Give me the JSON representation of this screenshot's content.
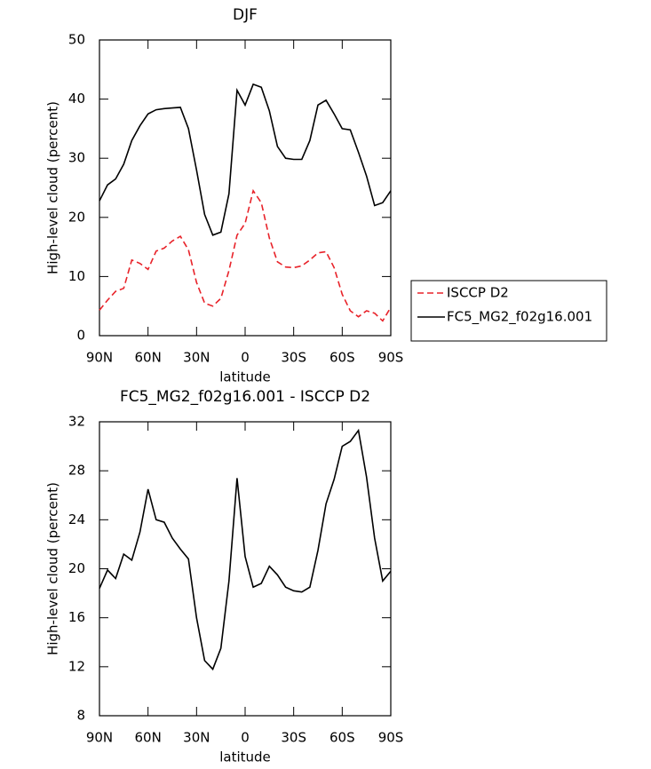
{
  "chart_data": [
    {
      "type": "line",
      "title": "DJF",
      "xlabel": "latitude",
      "ylabel": "High-level cloud (percent)",
      "x": [
        90,
        85,
        80,
        75,
        70,
        65,
        60,
        55,
        50,
        45,
        40,
        35,
        30,
        25,
        20,
        15,
        10,
        5,
        0,
        -5,
        -10,
        -15,
        -20,
        -25,
        -30,
        -35,
        -40,
        -45,
        -50,
        -55,
        -60,
        -65,
        -70,
        -75,
        -80,
        -85,
        -90
      ],
      "xlim": [
        90,
        -90
      ],
      "xticks": [
        {
          "value": 90,
          "label": "90N"
        },
        {
          "value": 60,
          "label": "60N"
        },
        {
          "value": 30,
          "label": "30N"
        },
        0,
        {
          "value": -30,
          "label": "30S"
        },
        {
          "value": -60,
          "label": "60S"
        },
        {
          "value": -90,
          "label": "90S"
        }
      ],
      "ylim": [
        0,
        50
      ],
      "yticks": [
        0,
        10,
        20,
        30,
        40,
        50
      ],
      "legend": "right",
      "series": [
        {
          "name": "ISCCP D2",
          "color": "#e8232a",
          "linestyle": "dashed",
          "values": [
            4.3,
            6,
            7.5,
            8,
            12.8,
            12.2,
            11.2,
            14.3,
            14.8,
            16,
            16.8,
            14.5,
            9,
            5.5,
            5,
            6.3,
            11,
            17,
            19,
            24.5,
            22.5,
            16.5,
            12.5,
            11.6,
            11.5,
            11.8,
            12.8,
            14,
            14.2,
            11.5,
            7,
            4.2,
            3.2,
            4.2,
            3.8,
            2.5,
            4.8
          ]
        },
        {
          "name": "FC5_MG2_f02g16.001",
          "color": "#000000",
          "linestyle": "solid",
          "values": [
            22.8,
            25.5,
            26.5,
            29,
            33,
            35.5,
            37.5,
            38.2,
            38.4,
            38.5,
            38.6,
            35,
            28,
            20.5,
            17,
            17.5,
            24,
            41.5,
            39,
            42.5,
            42,
            38,
            32,
            30,
            29.8,
            29.8,
            33,
            39,
            39.8,
            37.5,
            35,
            34.8,
            31,
            27,
            22,
            22.5,
            24.5
          ]
        }
      ]
    },
    {
      "type": "line",
      "title": "FC5_MG2_f02g16.001 - ISCCP D2",
      "xlabel": "latitude",
      "ylabel": "High-level cloud (percent)",
      "x": [
        90,
        85,
        80,
        75,
        70,
        65,
        60,
        55,
        50,
        45,
        40,
        35,
        30,
        25,
        20,
        15,
        10,
        5,
        0,
        -5,
        -10,
        -15,
        -20,
        -25,
        -30,
        -35,
        -40,
        -45,
        -50,
        -55,
        -60,
        -65,
        -70,
        -75,
        -80,
        -85,
        -90
      ],
      "xlim": [
        90,
        -90
      ],
      "xticks": [
        {
          "value": 90,
          "label": "90N"
        },
        {
          "value": 60,
          "label": "60N"
        },
        {
          "value": 30,
          "label": "30N"
        },
        0,
        {
          "value": -30,
          "label": "30S"
        },
        {
          "value": -60,
          "label": "60S"
        },
        {
          "value": -90,
          "label": "90S"
        }
      ],
      "ylim": [
        8,
        32
      ],
      "yticks": [
        8,
        12,
        16,
        20,
        24,
        28,
        32
      ],
      "series": [
        {
          "color": "#000000",
          "linestyle": "solid",
          "values": [
            18.4,
            19.9,
            19.2,
            21.2,
            20.7,
            23,
            26.5,
            24,
            23.8,
            22.5,
            21.6,
            20.8,
            16,
            12.5,
            11.8,
            13.5,
            19,
            27.4,
            21,
            18.5,
            18.8,
            20.2,
            19.5,
            18.5,
            18.2,
            18.1,
            18.5,
            21.5,
            25.3,
            27.3,
            30,
            30.4,
            31.3,
            27.5,
            22.5,
            19,
            19.8
          ]
        }
      ]
    }
  ]
}
